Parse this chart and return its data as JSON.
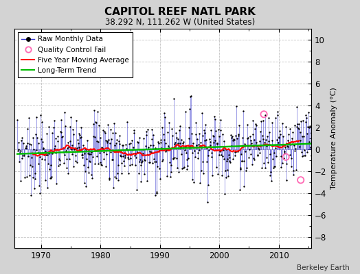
{
  "title": "CAPITOL REEF NATL PARK",
  "subtitle": "38.292 N, 111.262 W (United States)",
  "ylabel": "Temperature Anomaly (°C)",
  "credit": "Berkeley Earth",
  "xlim": [
    1965.5,
    2015.5
  ],
  "ylim": [
    -9,
    11
  ],
  "yticks": [
    -8,
    -6,
    -4,
    -2,
    0,
    2,
    4,
    6,
    8,
    10
  ],
  "xticks": [
    1970,
    1980,
    1990,
    2000,
    2010
  ],
  "fig_bg": "#d3d3d3",
  "plot_bg": "#ffffff",
  "raw_color": "#3333cc",
  "dot_color": "#000000",
  "ma_color": "#ff0000",
  "trend_color": "#00bb00",
  "qc_color": "#ff69b4",
  "legend_items": [
    {
      "label": "Raw Monthly Data"
    },
    {
      "label": "Quality Control Fail"
    },
    {
      "label": "Five Year Moving Average"
    },
    {
      "label": "Long-Term Trend"
    }
  ],
  "start_year": 1966.0,
  "n_years": 50,
  "seed": 7,
  "trend_slope": 0.008,
  "qc_years": [
    2007.5,
    2011.2,
    2013.7
  ],
  "qc_vals": [
    3.2,
    -0.7,
    -2.8
  ]
}
